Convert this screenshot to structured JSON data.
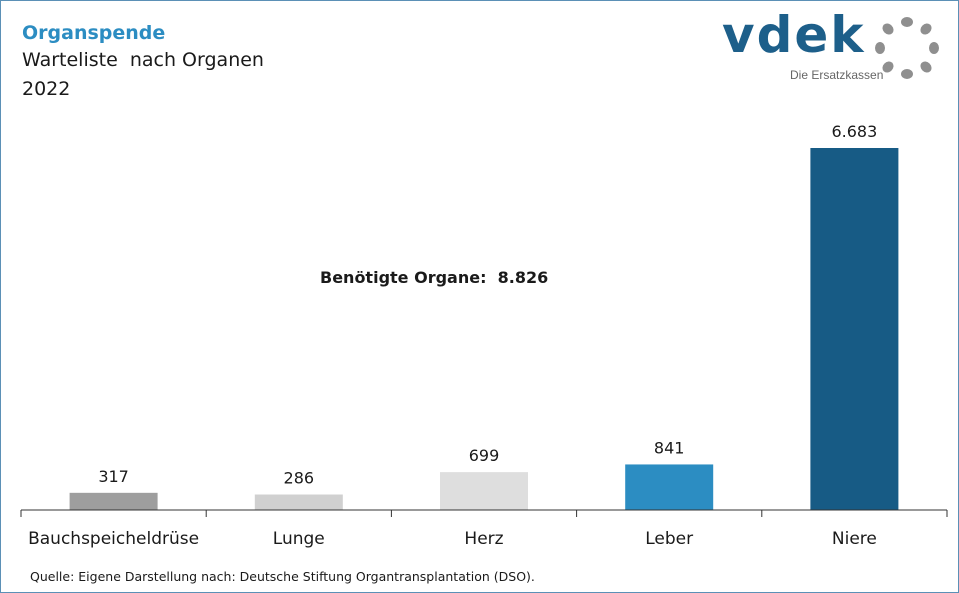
{
  "header": {
    "topic": "Organspende",
    "title": "Warteliste  nach Organen",
    "year": "2022"
  },
  "logo": {
    "wordmark": "vdek",
    "tagline": "Die Ersatzkassen"
  },
  "annotation": "Benötigte Organe:  8.826",
  "source": "Quelle: Eigene Darstellung nach: Deutsche Stiftung Organtransplantation (DSO).",
  "chart_data": {
    "type": "bar",
    "categories": [
      "Bauchspeicheldrüse",
      "Lunge",
      "Herz",
      "Leber",
      "Niere"
    ],
    "values": [
      317,
      286,
      699,
      841,
      6683
    ],
    "value_labels": [
      "317",
      "286",
      "699",
      "841",
      "6.683"
    ],
    "colors": [
      "#9e9e9e",
      "#d0d0d0",
      "#dedede",
      "#2c8dc2",
      "#175b85"
    ],
    "title": "Warteliste  nach Organen",
    "subtitle": "2022",
    "ylim": [
      0,
      7000
    ],
    "grid": false,
    "legend": "none"
  }
}
